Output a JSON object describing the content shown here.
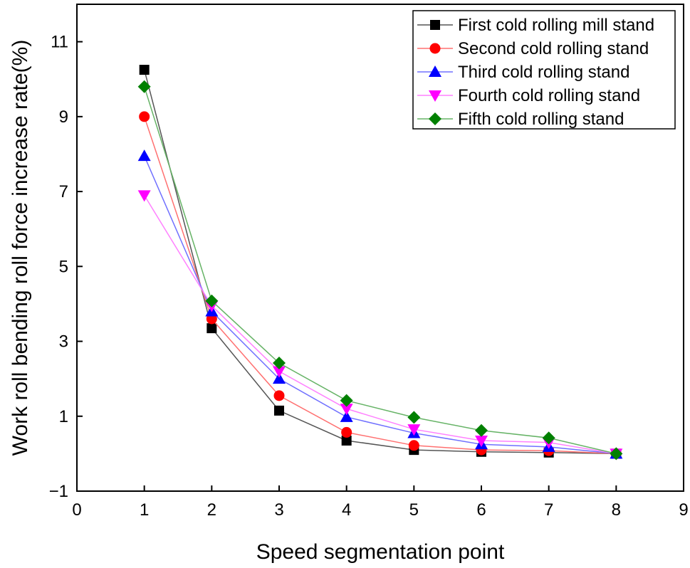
{
  "chart_data": {
    "type": "line",
    "title": "",
    "xlabel": "Speed segmentation point",
    "ylabel": "Work roll bending roll force increase rate(%)",
    "xlim": [
      0,
      9
    ],
    "ylim": [
      -1,
      12
    ],
    "xticks": [
      0,
      1,
      2,
      3,
      4,
      5,
      6,
      7,
      8,
      9
    ],
    "yticks": [
      -1,
      1,
      3,
      5,
      7,
      9,
      11
    ],
    "xtick_labels": [
      "0",
      "1",
      "2",
      "3",
      "4",
      "5",
      "6",
      "7",
      "8",
      "9"
    ],
    "ytick_labels": [
      "−1",
      "1",
      "3",
      "5",
      "7",
      "9",
      "11"
    ],
    "grid": false,
    "legend_position": "top-right",
    "x": [
      1,
      2,
      3,
      4,
      5,
      6,
      7,
      8
    ],
    "series": [
      {
        "name": "First cold rolling mill stand",
        "color": "#000000",
        "line_color": "#555555",
        "marker": "square",
        "values": [
          10.25,
          3.35,
          1.15,
          0.35,
          0.1,
          0.05,
          0.03,
          0.0
        ]
      },
      {
        "name": "Second cold rolling stand",
        "color": "#ff0000",
        "line_color": "#ff7070",
        "marker": "circle",
        "values": [
          9.0,
          3.6,
          1.55,
          0.57,
          0.22,
          0.1,
          0.08,
          0.0
        ]
      },
      {
        "name": "Third cold rolling stand",
        "color": "#0000ff",
        "line_color": "#7070ff",
        "marker": "triangle-up",
        "values": [
          7.95,
          3.8,
          2.0,
          0.98,
          0.55,
          0.25,
          0.18,
          0.0
        ]
      },
      {
        "name": "Fourth cold rolling stand",
        "color": "#ff00ff",
        "line_color": "#ff80ff",
        "marker": "triangle-down",
        "values": [
          6.9,
          3.95,
          2.2,
          1.2,
          0.65,
          0.35,
          0.3,
          0.0
        ]
      },
      {
        "name": "Fifth cold rolling stand",
        "color": "#008000",
        "line_color": "#66b366",
        "marker": "diamond",
        "values": [
          9.8,
          4.08,
          2.42,
          1.42,
          0.97,
          0.62,
          0.42,
          0.0
        ]
      }
    ]
  }
}
